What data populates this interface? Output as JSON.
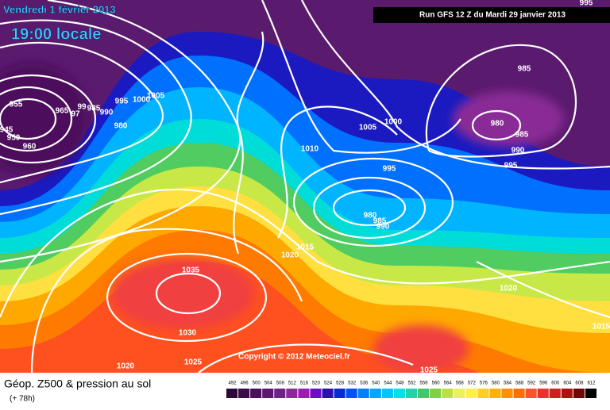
{
  "header": {
    "date": "Vendredi 1 février 2013",
    "time": "19:00 locale",
    "run": "Run GFS 12 Z du Mardi 29 janvier 2013",
    "copyright": "Copyright © 2012 Meteociel.fr"
  },
  "footer": {
    "title": "Géop. Z500 & pression au sol",
    "lead": "(+ 78h)"
  },
  "isobars": [
    "955",
    "965",
    "97",
    "99",
    "985",
    "990",
    "995",
    "1000",
    "1005",
    "980",
    "945",
    "950",
    "960",
    "1005",
    "1000",
    "1010",
    "995",
    "980",
    "985",
    "990",
    "1015",
    "1020",
    "1035",
    "1030",
    "1025",
    "1020",
    "1025",
    "1020",
    "1015",
    "985",
    "980",
    "985",
    "990",
    "995",
    "995"
  ],
  "legend": {
    "values": [
      492,
      496,
      500,
      504,
      508,
      512,
      516,
      520,
      524,
      528,
      532,
      536,
      540,
      544,
      548,
      552,
      556,
      560,
      564,
      568,
      572,
      576,
      580,
      584,
      588,
      592,
      596,
      600,
      604,
      608,
      612
    ],
    "colors": [
      "#2e0838",
      "#3c0c4a",
      "#4b105c",
      "#5c186e",
      "#6e2282",
      "#8a2a96",
      "#9a1cb0",
      "#6a10c8",
      "#2a10b0",
      "#0a28d8",
      "#0050ff",
      "#0080ff",
      "#00a8ff",
      "#00c8ff",
      "#00e4e8",
      "#20d4a8",
      "#40c870",
      "#80d040",
      "#bde040",
      "#ecf05a",
      "#fff040",
      "#ffd020",
      "#ffb000",
      "#ff9000",
      "#ff7000",
      "#ff5030",
      "#f03030",
      "#d02020",
      "#b01010",
      "#700808",
      "#000000"
    ]
  }
}
